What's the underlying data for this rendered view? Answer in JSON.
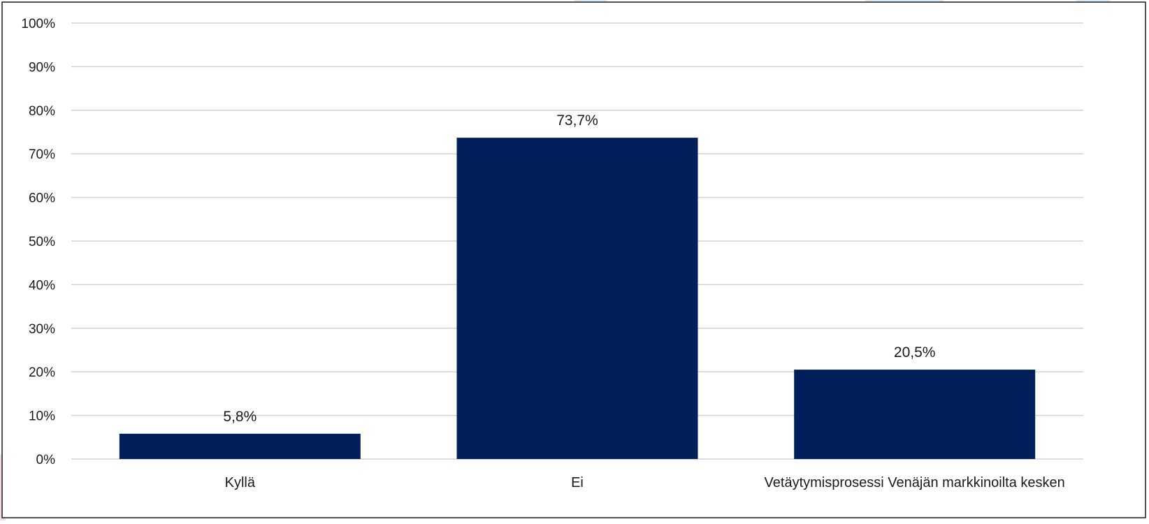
{
  "chart_data": {
    "type": "bar",
    "categories": [
      "Kyllä",
      "Ei",
      "Vetäytymisprosessi Venäjän markkinoilta kesken"
    ],
    "values": [
      5.8,
      73.7,
      20.5
    ],
    "data_labels": [
      "5,8%",
      "73,7%",
      "20,5%"
    ],
    "title": "",
    "xlabel": "",
    "ylabel": "",
    "ylim": [
      0,
      100
    ],
    "yticks": [
      0,
      10,
      20,
      30,
      40,
      50,
      60,
      70,
      80,
      90,
      100
    ],
    "ytick_labels": [
      "0%",
      "10%",
      "20%",
      "30%",
      "40%",
      "50%",
      "60%",
      "70%",
      "80%",
      "90%",
      "100%"
    ],
    "grid": true,
    "legend": "none",
    "colors": {
      "bar": "#001f5b",
      "grid": "#d2d2d2",
      "frame": "#1a1a1a"
    }
  }
}
